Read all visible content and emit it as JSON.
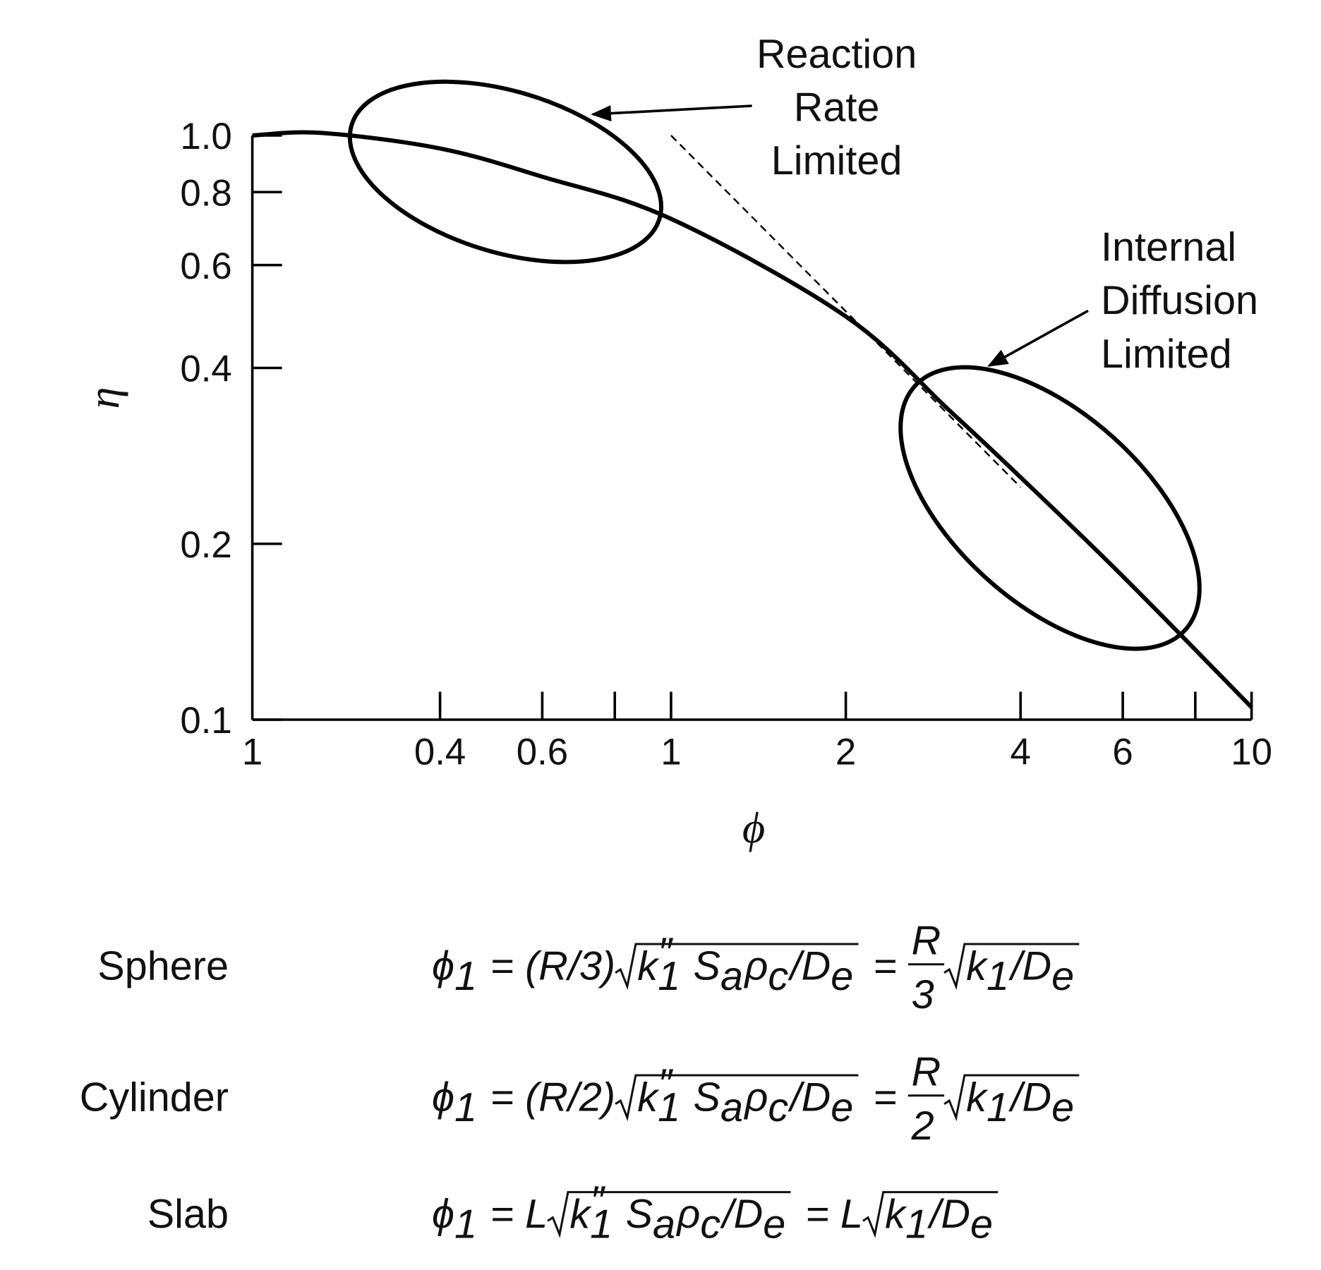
{
  "chart_data": {
    "type": "line",
    "x_label": "ϕ",
    "y_label": "η",
    "log_x": true,
    "log_y": true,
    "xlim": [
      0.19,
      10
    ],
    "ylim": [
      0.1,
      1.0
    ],
    "x_start_label": "1",
    "xticks": [
      0.4,
      0.6,
      1,
      2,
      4,
      6,
      10
    ],
    "xminorticks": [
      0.8,
      8
    ],
    "yticks": [
      0.1,
      0.2,
      0.4,
      0.6,
      0.8,
      {
        "value": 1.0,
        "label": "1.0"
      }
    ],
    "series": [
      {
        "color": "#000000",
        "dash": false,
        "x": [
          0.19,
          0.25,
          0.4,
          0.6,
          1,
          2,
          3,
          4,
          6,
          10
        ],
        "values": [
          1.0,
          1.01,
          0.95,
          0.85,
          0.72,
          0.49,
          0.34,
          0.26,
          0.176,
          0.105
        ]
      },
      {
        "color": "#000000",
        "dash": true,
        "x": [
          1,
          4
        ],
        "values": [
          1.0,
          0.25
        ]
      }
    ],
    "annotations": [
      {
        "lines": [
          "Reaction",
          "Rate",
          "Limited"
        ]
      },
      {
        "lines": [
          "Internal",
          "Diffusion",
          "Limited"
        ]
      }
    ]
  },
  "equations": [
    {
      "shape": "Sphere",
      "parts": [
        {
          "base": "ϕ",
          "sub": "1"
        },
        " = (R/3)",
        {
          "sqrt": [
            {
              "base": "k",
              "sub": "1",
              "sup": "″"
            },
            " ",
            {
              "base": "S",
              "sub": "a"
            },
            {
              "base": "ρ",
              "sub": "c"
            },
            "/",
            {
              "base": "D",
              "sub": "e"
            }
          ]
        },
        " = ",
        {
          "frac": [
            "R",
            "3"
          ]
        },
        {
          "sqrt": [
            {
              "base": "k",
              "sub": "1"
            },
            "/",
            {
              "base": "D",
              "sub": "e"
            }
          ]
        }
      ]
    },
    {
      "shape": "Cylinder",
      "parts": [
        {
          "base": "ϕ",
          "sub": "1"
        },
        " = (R/2)",
        {
          "sqrt": [
            {
              "base": "k",
              "sub": "1",
              "sup": "″"
            },
            " ",
            {
              "base": "S",
              "sub": "a"
            },
            {
              "base": "ρ",
              "sub": "c"
            },
            "/",
            {
              "base": "D",
              "sub": "e"
            }
          ]
        },
        " = ",
        {
          "frac": [
            "R",
            "2"
          ]
        },
        {
          "sqrt": [
            {
              "base": "k",
              "sub": "1"
            },
            "/",
            {
              "base": "D",
              "sub": "e"
            }
          ]
        }
      ]
    },
    {
      "shape": "Slab",
      "parts": [
        {
          "base": "ϕ",
          "sub": "1"
        },
        " = L",
        {
          "sqrt": [
            {
              "base": "k",
              "sub": "1",
              "sup": "″"
            },
            " ",
            {
              "base": "S",
              "sub": "a"
            },
            {
              "base": "ρ",
              "sub": "c"
            },
            "/",
            {
              "base": "D",
              "sub": "e"
            }
          ]
        },
        " = L",
        {
          "sqrt": [
            {
              "base": "k",
              "sub": "1"
            },
            "/",
            {
              "base": "D",
              "sub": "e"
            }
          ]
        }
      ]
    }
  ]
}
